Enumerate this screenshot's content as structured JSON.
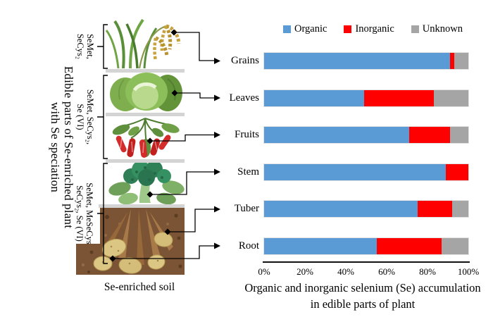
{
  "figure": {
    "left_panel": {
      "axis_label_line1": "Edible parts of Se-enriched plant",
      "axis_label_line2": "with Se speciation",
      "soil_label": "Se-enriched soil",
      "speciation_groups": [
        {
          "line1": "SeMet,",
          "line2": "SeCys₂"
        },
        {
          "line1": "SeMet, SeCys₂,",
          "line2": "Se (VI)"
        },
        {
          "line1": "SeMet, MeSeCys",
          "line2": "SeCys₂, Se (VI)"
        }
      ],
      "plant_illustrations": [
        "rice-grains",
        "cabbage-leaves",
        "chili-fruits",
        "broccoli-stem",
        "soil-with-tubers-and-roots"
      ]
    }
  },
  "chart_data": {
    "type": "bar",
    "orientation": "horizontal",
    "stacked": true,
    "categories": [
      "Grains",
      "Leaves",
      "Fruits",
      "Stem",
      "Tuber",
      "Root"
    ],
    "series": [
      {
        "name": "Organic",
        "color": "#5B9BD5",
        "values": [
          91,
          49,
          71,
          89,
          75,
          55
        ]
      },
      {
        "name": "Inorganic",
        "color": "#FF0000",
        "values": [
          2,
          34,
          20,
          11,
          17,
          32
        ]
      },
      {
        "name": "Unknown",
        "color": "#A5A5A5",
        "values": [
          7,
          17,
          9,
          0,
          8,
          13
        ]
      }
    ],
    "x_ticks": [
      "0%",
      "20%",
      "40%",
      "60%",
      "80%",
      "100%"
    ],
    "xlim": [
      0,
      100
    ],
    "grid": false,
    "legend_position": "top",
    "title_line1": "Organic and inorganic selenium (Se) accumulation",
    "title_line2": "in edible parts of plant"
  }
}
